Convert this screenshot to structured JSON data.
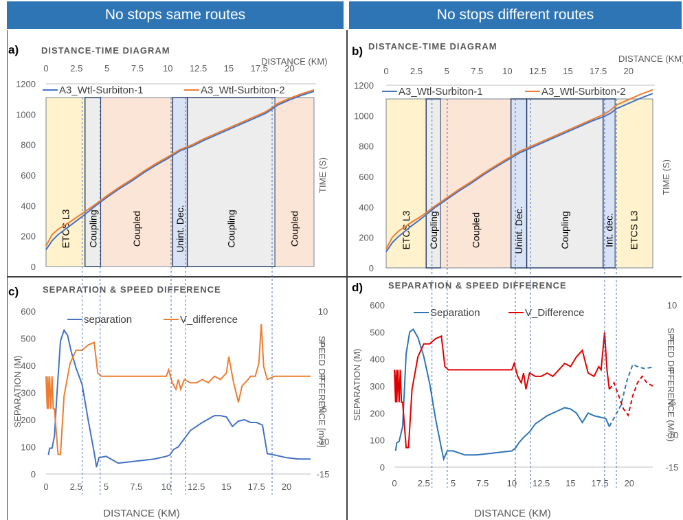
{
  "colors": {
    "header_bg": "#2E75B6",
    "train1": "#4472C4",
    "train2": "#ED7D31",
    "sep_blue": "#4472C4",
    "vdiff_orange": "#ED7D31",
    "sep_blue_d": "#2E75B6",
    "vdiff_red": "#E00000",
    "etcs_bg": "#FFF2CC",
    "coupling_bg": "#EDEDED",
    "coupled_bg": "#FBE5D6",
    "decoupling_bg": "#DAE3F3",
    "guide": "#4472C4"
  },
  "headers": [
    "No stops same routes",
    "No stops different routes"
  ],
  "chart_data": [
    {
      "id": "a",
      "type": "line",
      "panel_label": "a)",
      "title": "DISTANCE-TIME DIAGRAM",
      "xlabel": "DISTANCE  (KM)",
      "ylabel": "TIME (S)",
      "x_ticks": [
        "0",
        "2.5",
        "5",
        "7.5",
        "10",
        "12.5",
        "15",
        "17.5",
        "20"
      ],
      "y_ticks": [
        "0",
        "200",
        "400",
        "600",
        "800",
        "1000",
        "1200"
      ],
      "xlim": [
        0,
        22
      ],
      "ylim": [
        1200,
        0
      ],
      "zones": [
        {
          "label": "ETCS L3",
          "from": 0,
          "to": 3.2,
          "kind": "etcs"
        },
        {
          "label": "Coupling",
          "from": 3.2,
          "to": 4.5,
          "kind": "coupling"
        },
        {
          "label": "Coupled",
          "from": 4.5,
          "to": 10.4,
          "kind": "coupled"
        },
        {
          "label": "Unint. Dec.",
          "from": 10.4,
          "to": 11.6,
          "kind": "decoupling"
        },
        {
          "label": "Coupling",
          "from": 11.6,
          "to": 18.8,
          "kind": "coupling"
        },
        {
          "label": "Coupled",
          "from": 18.8,
          "to": 22,
          "kind": "coupled"
        }
      ],
      "series": [
        {
          "name": "A3_Wtl-Surbiton-1",
          "color": "train1",
          "x": [
            0,
            0.5,
            1,
            2,
            3,
            4,
            5,
            6,
            7,
            8,
            9,
            10,
            11,
            12,
            13,
            14,
            15,
            16,
            17,
            18,
            18.5,
            19,
            20,
            21,
            22
          ],
          "y": [
            110,
            170,
            210,
            270,
            330,
            395,
            455,
            510,
            560,
            615,
            665,
            710,
            760,
            790,
            830,
            865,
            900,
            935,
            970,
            1005,
            1030,
            1060,
            1095,
            1125,
            1150
          ]
        },
        {
          "name": "A3_Wtl-Surbiton-2",
          "color": "train2",
          "x": [
            0,
            0.5,
            1,
            2,
            3,
            4,
            5,
            6,
            7,
            8,
            9,
            10,
            11,
            12,
            13,
            14,
            15,
            16,
            17,
            18,
            18.5,
            19,
            20,
            21,
            22
          ],
          "y": [
            135,
            210,
            245,
            295,
            350,
            405,
            465,
            520,
            570,
            625,
            675,
            720,
            768,
            800,
            840,
            875,
            910,
            945,
            980,
            1015,
            1040,
            1070,
            1105,
            1135,
            1160
          ]
        }
      ]
    },
    {
      "id": "b",
      "type": "line",
      "panel_label": "b)",
      "title": "DISTANCE-TIME DIAGRAM",
      "xlabel": "DISTANCE  (KM)",
      "ylabel": "TIME (S)",
      "x_ticks": [
        "0",
        "2.5",
        "5",
        "7.5",
        "10",
        "12.5",
        "15",
        "17.5",
        "20"
      ],
      "y_ticks": [
        "0",
        "200",
        "400",
        "600",
        "800",
        "1000",
        "1200"
      ],
      "xlim": [
        0,
        22
      ],
      "ylim": [
        1200,
        0
      ],
      "zones": [
        {
          "label": "ETCS L3",
          "from": 0,
          "to": 3.3,
          "kind": "etcs"
        },
        {
          "label": "Coupling",
          "from": 3.3,
          "to": 4.5,
          "kind": "coupling"
        },
        {
          "label": "Coupled",
          "from": 4.5,
          "to": 10.3,
          "kind": "coupled"
        },
        {
          "label": "Unint. Dec.",
          "from": 10.3,
          "to": 11.6,
          "kind": "decoupling"
        },
        {
          "label": "Coupling",
          "from": 11.6,
          "to": 17.9,
          "kind": "coupling"
        },
        {
          "label": "Int. dec.",
          "from": 17.9,
          "to": 18.9,
          "kind": "decoupling"
        },
        {
          "label": "ETCS L3",
          "from": 18.9,
          "to": 22,
          "kind": "etcs"
        }
      ],
      "series": [
        {
          "name": "A3_Wtl-Surbiton-1",
          "color": "train1",
          "x": [
            0,
            0.5,
            1,
            2,
            3,
            4,
            5,
            6,
            7,
            8,
            9,
            10,
            11,
            12,
            13,
            14,
            15,
            16,
            17,
            18,
            18.5,
            19,
            20,
            21,
            22
          ],
          "y": [
            105,
            165,
            205,
            270,
            330,
            395,
            450,
            505,
            555,
            610,
            660,
            708,
            755,
            790,
            825,
            860,
            895,
            930,
            965,
            995,
            1015,
            1045,
            1080,
            1115,
            1145
          ]
        },
        {
          "name": "A3_Wtl-Surbiton-2",
          "color": "train2",
          "x": [
            0,
            0.5,
            1,
            2,
            3,
            4,
            5,
            6,
            7,
            8,
            9,
            10,
            11,
            12,
            13,
            14,
            15,
            16,
            17,
            18,
            18.5,
            19,
            20,
            21,
            22
          ],
          "y": [
            125,
            200,
            240,
            295,
            345,
            405,
            460,
            515,
            565,
            620,
            670,
            718,
            765,
            800,
            835,
            870,
            905,
            940,
            975,
            1010,
            1035,
            1070,
            1105,
            1140,
            1170
          ]
        }
      ]
    },
    {
      "id": "c",
      "type": "line",
      "panel_label": "c)",
      "title": "SEPARATION & SPEED DIFFERENCE",
      "xlabel": "DISTANCE (KM)",
      "ylabel": "SEPARATION (M)",
      "y2label": "SPEED DIFFERENCE [m/s]",
      "x_ticks": [
        "0",
        "2.5",
        "5",
        "7.5",
        "10",
        "12.5",
        "15",
        "17.5",
        "20"
      ],
      "y_ticks": [
        "0",
        "100",
        "200",
        "300",
        "400",
        "500",
        "600"
      ],
      "y2_ticks": [
        "10",
        "5",
        "0",
        "-5",
        "-10",
        "-15"
      ],
      "xlim": [
        0,
        22
      ],
      "ylim": [
        0,
        600
      ],
      "y2lim": [
        -15,
        10
      ],
      "series": [
        {
          "name": "separation",
          "axis": "left",
          "color": "sep_blue",
          "x": [
            0.2,
            0.3,
            0.5,
            0.7,
            0.9,
            1.2,
            1.5,
            1.8,
            2.1,
            2.5,
            3,
            3.5,
            4,
            4.2,
            4.4,
            5,
            6,
            7,
            8,
            9,
            10,
            10.3,
            10.6,
            11,
            11.5,
            12,
            13,
            14,
            14.5,
            15,
            15.5,
            16,
            16.5,
            17,
            17.5,
            18,
            18.4,
            19,
            20,
            21,
            22
          ],
          "y": [
            70,
            95,
            95,
            140,
            290,
            490,
            530,
            510,
            450,
            390,
            330,
            200,
            80,
            25,
            60,
            65,
            40,
            45,
            50,
            55,
            65,
            70,
            90,
            100,
            130,
            160,
            190,
            215,
            215,
            210,
            175,
            195,
            200,
            190,
            190,
            180,
            75,
            70,
            60,
            55,
            55
          ]
        },
        {
          "name": "V_difference",
          "axis": "right",
          "color": "vdiff_orange",
          "x": [
            0,
            0.1,
            0.15,
            0.2,
            0.3,
            0.4,
            0.5,
            0.6,
            0.7,
            1,
            1.2,
            1.5,
            2,
            2.5,
            3,
            3.5,
            4,
            4.3,
            4.6,
            5,
            6,
            7,
            8,
            9,
            10,
            10.2,
            10.5,
            10.8,
            11,
            11.2,
            11.5,
            12,
            12.5,
            13,
            13.5,
            14,
            14.5,
            15,
            15.2,
            15.6,
            16,
            16.3,
            16.8,
            17,
            17.4,
            17.7,
            17.9,
            18.1,
            18.4,
            19,
            20,
            21,
            22
          ],
          "y": [
            0,
            -5,
            0,
            -5,
            0,
            -5,
            0,
            -5,
            -5,
            -12,
            -12,
            -3,
            2,
            4,
            4,
            4.8,
            5.2,
            0.5,
            0,
            0,
            0,
            0,
            0,
            0,
            0,
            1,
            -1,
            -2,
            -0.5,
            -2,
            -0.5,
            -1,
            -1,
            -0.5,
            -1,
            0,
            -0.5,
            0.5,
            3,
            -1,
            -4,
            -1.5,
            -0.5,
            0,
            0,
            2,
            8,
            1.5,
            -0.5,
            0,
            0,
            0,
            0
          ]
        }
      ],
      "guides_x": [
        3.0,
        4.5,
        10.4,
        11.6,
        18.8
      ]
    },
    {
      "id": "d",
      "type": "line",
      "panel_label": "d)",
      "title": "SEPARATION & SPEED DIFFERENCE",
      "xlabel": "DISTANCE  (KM)",
      "ylabel": "SEPARATION (M)",
      "y2label": "SPEED DIFFERENCE (M/S)",
      "x_ticks": [
        "0",
        "2.5",
        "5",
        "7.5",
        "10",
        "12.5",
        "15",
        "17.5",
        "20"
      ],
      "y_ticks": [
        "0",
        "100",
        "200",
        "300",
        "400",
        "500",
        "600"
      ],
      "y2_ticks": [
        "10",
        "5",
        "0",
        "-5",
        "-10",
        "-15"
      ],
      "xlim": [
        0,
        22
      ],
      "ylim": [
        0,
        600
      ],
      "y2lim": [
        -15,
        10
      ],
      "series": [
        {
          "name": "Separation",
          "axis": "left",
          "color": "sep_blue_d",
          "x": [
            0.1,
            0.2,
            0.4,
            0.7,
            1.0,
            1.3,
            1.6,
            2,
            2.5,
            3,
            3.5,
            4,
            4.2,
            4.5,
            5,
            6,
            7,
            8,
            9,
            10,
            10.3,
            10.6,
            11,
            11.5,
            12,
            13,
            14,
            14.5,
            15,
            15.5,
            16,
            16.5,
            17,
            17.5,
            18,
            18.3
          ],
          "y": [
            60,
            90,
            95,
            150,
            420,
            500,
            510,
            480,
            410,
            310,
            180,
            70,
            30,
            60,
            60,
            45,
            45,
            50,
            55,
            60,
            70,
            90,
            110,
            130,
            160,
            190,
            210,
            220,
            215,
            200,
            165,
            200,
            190,
            185,
            180,
            150
          ]
        },
        {
          "name": "Separation_dashed",
          "axis": "left",
          "color": "sep_blue_d",
          "dashed": true,
          "legend": false,
          "x": [
            18.3,
            18.8,
            19.3,
            19.8,
            20.3,
            20.8,
            21.3,
            22
          ],
          "y": [
            150,
            190,
            230,
            320,
            380,
            370,
            365,
            370
          ]
        },
        {
          "name": "V_Difference",
          "axis": "right",
          "color": "vdiff_red",
          "x": [
            0,
            0.1,
            0.15,
            0.2,
            0.3,
            0.4,
            0.5,
            0.6,
            0.7,
            1,
            1.2,
            1.5,
            2,
            2.5,
            3,
            3.5,
            4,
            4.3,
            4.6,
            5,
            6,
            7,
            8,
            9,
            10,
            10.2,
            10.5,
            10.8,
            11,
            11.2,
            11.5,
            12,
            12.5,
            13,
            13.5,
            14,
            14.5,
            15,
            15.5,
            16,
            16.5,
            17,
            17.4,
            17.6,
            17.9,
            18.1,
            18.3
          ],
          "y": [
            0,
            -5,
            0,
            -5,
            0,
            -5,
            0,
            -5,
            -5,
            -12,
            -12,
            -3,
            2,
            4,
            4,
            4.8,
            5.2,
            0.5,
            0,
            0,
            0,
            0,
            0,
            0,
            0,
            1,
            -1,
            -2,
            -0.5,
            -3,
            -0.5,
            -1,
            -1,
            -0.5,
            -1,
            0,
            1,
            0.5,
            2,
            3,
            -0.5,
            -1,
            0.5,
            0,
            5.8,
            0,
            -3
          ]
        },
        {
          "name": "V_Difference_dashed",
          "axis": "right",
          "color": "vdiff_red",
          "dashed": true,
          "legend": false,
          "x": [
            18.3,
            18.7,
            19.1,
            19.5,
            19.9,
            20.3,
            20.7,
            21.1,
            21.5,
            22
          ],
          "y": [
            -3,
            -2,
            -4,
            -6,
            -7,
            -4,
            -2,
            -1,
            -2,
            -2.5
          ]
        }
      ],
      "guides_x": [
        3.2,
        4.5,
        10.3,
        11.6,
        17.9,
        18.9
      ]
    }
  ]
}
